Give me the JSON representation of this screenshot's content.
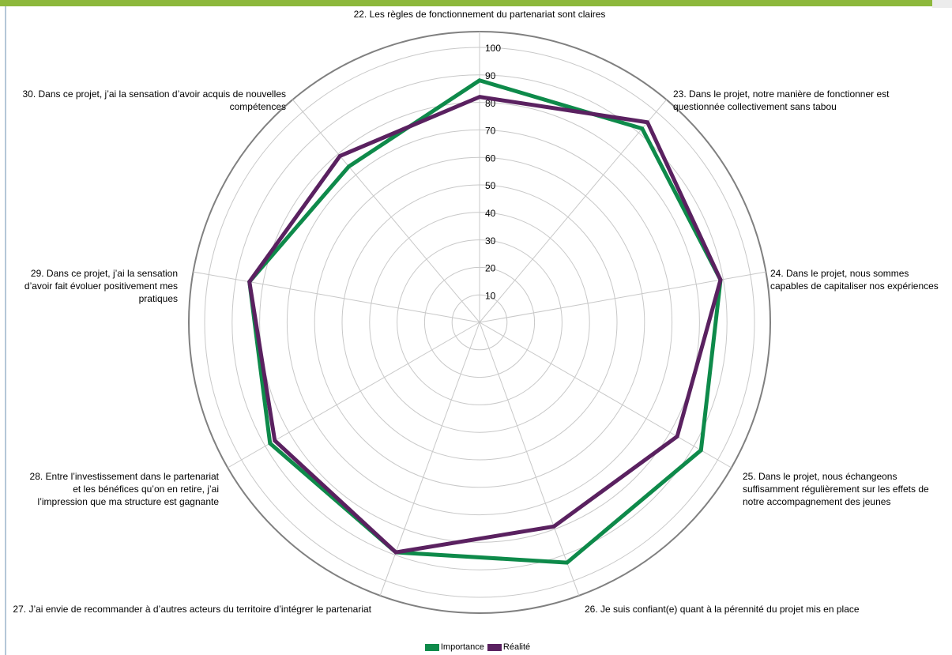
{
  "chart_data": {
    "type": "radar",
    "categories": [
      "22. Les règles de fonctionnement du partenariat sont claires",
      "23. Dans le projet, notre manière de fonctionner est questionnée collectivement sans tabou",
      "24. Dans le projet, nous sommes capables de capitaliser nos expériences",
      "25. Dans le projet, nous échangeons suffisamment régulièrement sur les effets de notre accompagnement des jeunes",
      "26. Je suis confiant(e) quant à la pérennité du projet mis en place",
      "27. J’ai envie de recommander à d’autres acteurs du territoire d’intégrer le partenariat",
      "28. Entre l’investissement dans le partenariat et les bénéfices qu’on en retire, j’ai l’impression que ma structure est gagnante",
      "29. Dans ce projet, j’ai la sensation d’avoir fait évoluer positivement mes pratiques",
      "30. Dans ce projet, j’ai la sensation d’avoir acquis de nouvelles compétences"
    ],
    "series": [
      {
        "name": "Importance",
        "color": "#0e8a4a",
        "values": [
          88,
          92,
          89,
          93,
          93,
          89,
          88,
          85,
          74
        ]
      },
      {
        "name": "Réalité",
        "color": "#5a2160",
        "values": [
          82,
          95,
          89,
          83,
          79,
          89,
          86,
          85,
          79
        ]
      }
    ],
    "ylim": [
      0,
      100
    ],
    "yticks": [
      10,
      20,
      30,
      40,
      50,
      60,
      70,
      80,
      90,
      100
    ],
    "grid": true,
    "legend": "bottom"
  }
}
